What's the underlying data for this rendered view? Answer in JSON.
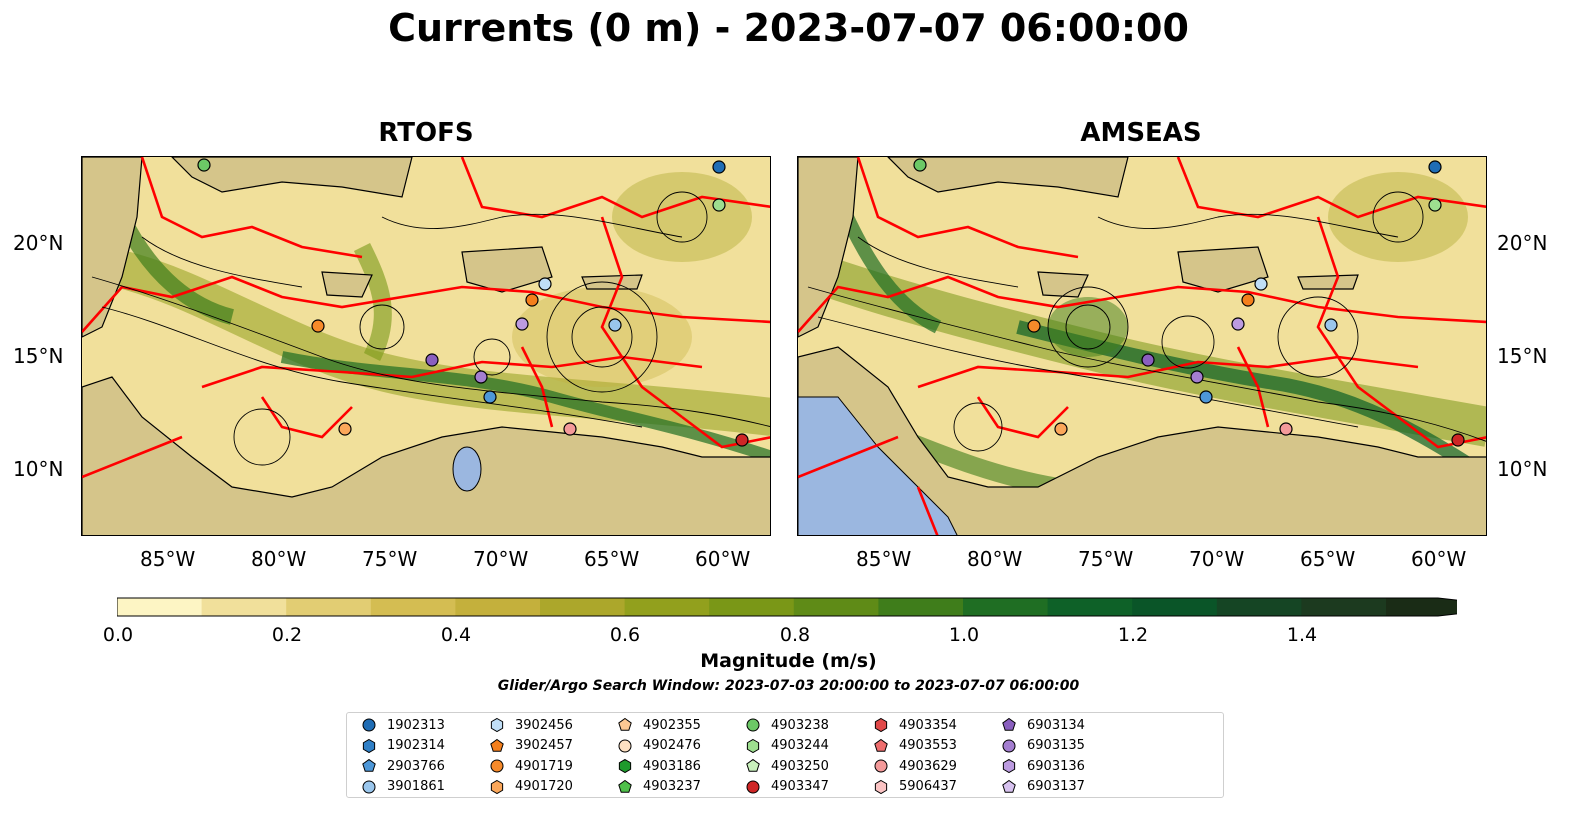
{
  "title": "Currents (0 m) - 2023-07-07 06:00:00",
  "panels": [
    {
      "id": "rtofs",
      "title": "RTOFS"
    },
    {
      "id": "amseas",
      "title": "AMSEAS"
    }
  ],
  "axes": {
    "lon_ticks": [
      "85°W",
      "80°W",
      "75°W",
      "70°W",
      "65°W",
      "60°W"
    ],
    "lat_ticks": [
      "20°N",
      "15°N",
      "10°N"
    ]
  },
  "colorbar": {
    "label": "Magnitude (m/s)",
    "ticks": [
      "0.0",
      "0.2",
      "0.4",
      "0.6",
      "0.8",
      "1.0",
      "1.2",
      "1.4"
    ],
    "levels": [
      0.0,
      0.1,
      0.2,
      0.3,
      0.4,
      0.5,
      0.6,
      0.7,
      0.8,
      0.9,
      1.0,
      1.1,
      1.2,
      1.3,
      1.4,
      1.5
    ],
    "colors": [
      "#fdf5c4",
      "#f1e09b",
      "#e2cd73",
      "#d4bd52",
      "#c4b03c",
      "#aca72b",
      "#92a01d",
      "#7a9717",
      "#5f8b17",
      "#3f7d1b",
      "#1f6e23",
      "#0e6128",
      "#0a5528",
      "#154524",
      "#1c3a1f",
      "#1a2c16"
    ],
    "extend": "max"
  },
  "search_window": "Glider/Argo Search Window: 2023-07-03 20:00:00 to 2023-07-07 06:00:00",
  "map_colors": {
    "land": "#d5c58a",
    "water_lake": "#9bb7e0",
    "coastline": "#000000",
    "boundary_red": "#ff0000"
  },
  "legend": [
    {
      "id": "1902313",
      "marker": "circle",
      "color": "#1f6db5"
    },
    {
      "id": "1902314",
      "marker": "hexagon",
      "color": "#2f7fc6"
    },
    {
      "id": "2903766",
      "marker": "pentagon",
      "color": "#4d97d8"
    },
    {
      "id": "3901861",
      "marker": "circle",
      "color": "#9ac6ec"
    },
    {
      "id": "3902456",
      "marker": "hexagon",
      "color": "#c0def6"
    },
    {
      "id": "3902457",
      "marker": "pentagon",
      "color": "#f47f1c"
    },
    {
      "id": "4901719",
      "marker": "circle",
      "color": "#f68a2a"
    },
    {
      "id": "4901720",
      "marker": "hexagon",
      "color": "#fba75a"
    },
    {
      "id": "4902355",
      "marker": "pentagon",
      "color": "#fcc893"
    },
    {
      "id": "4902476",
      "marker": "circle",
      "color": "#fde0c2"
    },
    {
      "id": "4903186",
      "marker": "hexagon",
      "color": "#1e9a2c"
    },
    {
      "id": "4903237",
      "marker": "pentagon",
      "color": "#4fbf4a"
    },
    {
      "id": "4903238",
      "marker": "circle",
      "color": "#6cc866"
    },
    {
      "id": "4903244",
      "marker": "hexagon",
      "color": "#9edf8f"
    },
    {
      "id": "4903250",
      "marker": "pentagon",
      "color": "#c9f0bc"
    },
    {
      "id": "4903347",
      "marker": "circle",
      "color": "#cf2626"
    },
    {
      "id": "4903354",
      "marker": "hexagon",
      "color": "#e04848"
    },
    {
      "id": "4903553",
      "marker": "pentagon",
      "color": "#ee6d6d"
    },
    {
      "id": "4903629",
      "marker": "circle",
      "color": "#f49a9a"
    },
    {
      "id": "5906437",
      "marker": "hexagon",
      "color": "#fbc4c4"
    },
    {
      "id": "6903134",
      "marker": "pentagon",
      "color": "#8a5fbf"
    },
    {
      "id": "6903135",
      "marker": "circle",
      "color": "#a47ed0"
    },
    {
      "id": "6903136",
      "marker": "hexagon",
      "color": "#bc9be0"
    },
    {
      "id": "6903137",
      "marker": "pentagon",
      "color": "#d7c2ef"
    }
  ]
}
